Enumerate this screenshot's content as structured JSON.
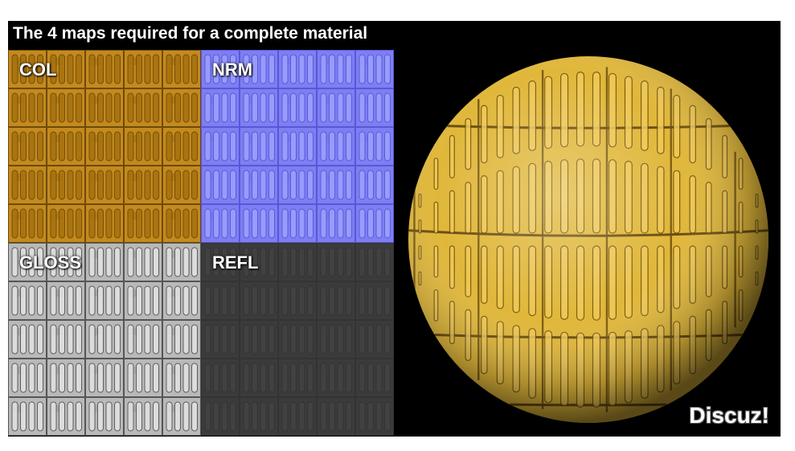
{
  "header": {
    "title": "The 4 maps required for a complete material"
  },
  "maps": [
    {
      "id": "col",
      "label": "COL",
      "base": "#c38a1e",
      "rail": "#a8720f",
      "seam": "#6e4a08",
      "mark": "#8f610c"
    },
    {
      "id": "nrm",
      "label": "NRM",
      "base": "#7d7ff2",
      "rail": "#9aa0ff",
      "seam": "#5b56d6",
      "mark": "#6f6ce8"
    },
    {
      "id": "gloss",
      "label": "GLOSS",
      "base": "#b9b9b9",
      "rail": "#e0e0e0",
      "seam": "#555555",
      "mark": "#8c8c8c"
    },
    {
      "id": "refl",
      "label": "REFL",
      "base": "#3b3b3b",
      "rail": "#424242",
      "seam": "#333333",
      "mark": "#3e3e3e"
    }
  ],
  "preview": {
    "sphere_color": "#e0b73a",
    "sphere_shadow": "#6b4e0c"
  },
  "watermark": {
    "text": "Discuz!"
  }
}
